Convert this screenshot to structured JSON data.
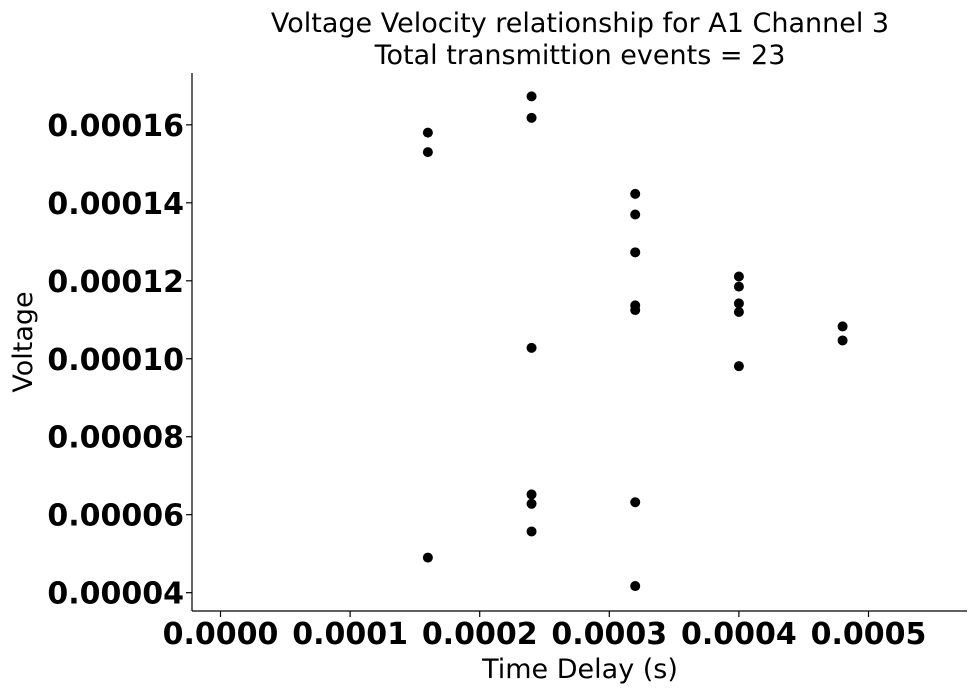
{
  "chart_data": {
    "type": "scatter",
    "title": "Voltage Velocity relationship for A1 Channel 3",
    "subtitle": "Total transmittion events = 23",
    "xlabel": "Time Delay (s)",
    "ylabel": "Voltage",
    "xlim": [
      -2.2e-05,
      0.000576
    ],
    "ylim": [
      3.53e-05,
      0.0001733
    ],
    "xticks": [
      0.0,
      0.0001,
      0.0002,
      0.0003,
      0.0004,
      0.0005
    ],
    "xtick_labels": [
      "0.0000",
      "0.0001",
      "0.0002",
      "0.0003",
      "0.0004",
      "0.0005"
    ],
    "yticks": [
      4e-05,
      6e-05,
      8e-05,
      0.0001,
      0.00012,
      0.00014,
      0.00016
    ],
    "ytick_labels": [
      "0.00004",
      "0.00006",
      "0.00008",
      "0.00010",
      "0.00012",
      "0.00014",
      "0.00016"
    ],
    "grid": false,
    "marker_color": "#000000",
    "points": [
      {
        "x": 0.00016,
        "y": 0.000158
      },
      {
        "x": 0.00016,
        "y": 0.000153
      },
      {
        "x": 0.00016,
        "y": 4.9e-05
      },
      {
        "x": 0.00024,
        "y": 0.0001673
      },
      {
        "x": 0.00024,
        "y": 0.0001618
      },
      {
        "x": 0.00024,
        "y": 0.0001028
      },
      {
        "x": 0.00024,
        "y": 6.52e-05
      },
      {
        "x": 0.00024,
        "y": 6.28e-05
      },
      {
        "x": 0.00024,
        "y": 5.57e-05
      },
      {
        "x": 0.00032,
        "y": 0.0001423
      },
      {
        "x": 0.00032,
        "y": 0.000137
      },
      {
        "x": 0.00032,
        "y": 0.0001273
      },
      {
        "x": 0.00032,
        "y": 0.0001137
      },
      {
        "x": 0.00032,
        "y": 0.0001125
      },
      {
        "x": 0.00032,
        "y": 6.32e-05
      },
      {
        "x": 0.00032,
        "y": 4.17e-05
      },
      {
        "x": 0.0004,
        "y": 0.0001211
      },
      {
        "x": 0.0004,
        "y": 0.0001185
      },
      {
        "x": 0.0004,
        "y": 0.0001142
      },
      {
        "x": 0.0004,
        "y": 0.000112
      },
      {
        "x": 0.0004,
        "y": 9.81e-05
      },
      {
        "x": 0.00048,
        "y": 0.0001083
      },
      {
        "x": 0.00048,
        "y": 0.0001047
      }
    ]
  }
}
